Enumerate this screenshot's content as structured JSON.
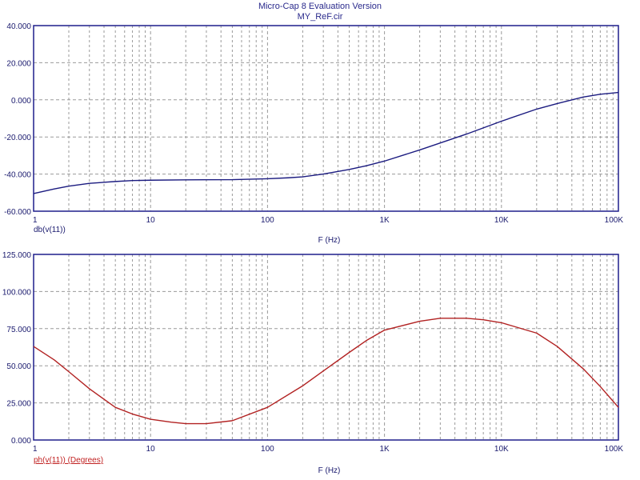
{
  "header": {
    "title": "Micro-Cap 8 Evaluation Version",
    "subtitle": "MY_ReF.cir"
  },
  "colors": {
    "frame": "#1e1e8c",
    "grid": "#9a9a9a",
    "text": "#1a1a6e",
    "magnitude_trace": "#1b1b80",
    "phase_trace": "#b22222",
    "phase_label": "#c02020"
  },
  "chart_data": [
    {
      "type": "line",
      "xscale": "log",
      "xlim": [
        1,
        100000
      ],
      "ylim": [
        -60,
        40
      ],
      "grid": true,
      "xlabel": "F (Hz)",
      "ylabel": "db(v(11))",
      "x_tick_labels": [
        "1",
        "10",
        "100",
        "1K",
        "10K",
        "100K"
      ],
      "y_tick_labels": [
        "-60.000",
        "-40.000",
        "-20.000",
        "0.000",
        "20.000",
        "40.000"
      ],
      "series": [
        {
          "name": "db(v(11))",
          "color": "#1b1b80",
          "x": [
            1,
            1.5,
            2,
            3,
            5,
            7,
            10,
            20,
            50,
            100,
            150,
            200,
            300,
            500,
            700,
            1000,
            2000,
            5000,
            10000,
            20000,
            30000,
            50000,
            70000,
            100000
          ],
          "y": [
            -50.5,
            -48,
            -46.5,
            -45,
            -44,
            -43.5,
            -43.3,
            -43.1,
            -43,
            -42.5,
            -42,
            -41.5,
            -40,
            -37.5,
            -35.5,
            -33,
            -27,
            -18.5,
            -11.5,
            -5,
            -2,
            1.5,
            3,
            4
          ]
        }
      ]
    },
    {
      "type": "line",
      "xscale": "log",
      "xlim": [
        1,
        100000
      ],
      "ylim": [
        0,
        125
      ],
      "grid": true,
      "xlabel": "F (Hz)",
      "ylabel": "ph(v(11)) (Degrees)",
      "x_tick_labels": [
        "1",
        "10",
        "100",
        "1K",
        "10K",
        "100K"
      ],
      "y_tick_labels": [
        "0.000",
        "25.000",
        "50.000",
        "75.000",
        "100.000",
        "125.000"
      ],
      "series": [
        {
          "name": "ph(v(11)) (Degrees)",
          "color": "#b22222",
          "x": [
            1,
            1.5,
            2,
            3,
            5,
            7,
            10,
            15,
            20,
            30,
            50,
            100,
            200,
            300,
            500,
            700,
            1000,
            2000,
            3000,
            5000,
            7000,
            10000,
            20000,
            30000,
            50000,
            70000,
            100000
          ],
          "y": [
            63,
            54,
            46,
            34.5,
            22,
            17.5,
            14,
            12,
            11,
            11,
            13,
            22,
            36.5,
            46.5,
            59,
            67,
            74,
            80,
            82,
            82,
            81,
            79,
            72,
            63,
            48,
            36,
            22
          ]
        }
      ]
    }
  ]
}
